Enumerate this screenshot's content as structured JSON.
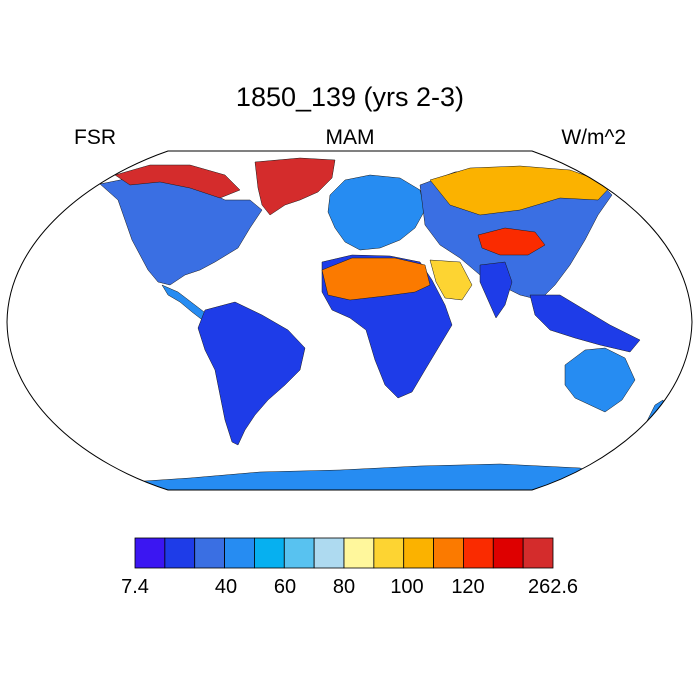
{
  "title": "1850_139 (yrs 2-3)",
  "left_label": "FSR",
  "center_label": "MAM",
  "right_label": "W/m^2",
  "colorbar": {
    "colors": [
      "#3b16f2",
      "#1e3ce8",
      "#3a6fe3",
      "#268cf2",
      "#06b0f0",
      "#58c2f0",
      "#aedaf0",
      "#fff79c",
      "#fdd432",
      "#fbb200",
      "#fb7a00",
      "#fa2b00",
      "#de0000",
      "#d42c2c"
    ],
    "labels": [
      {
        "text": "7.4",
        "boundary": 0
      },
      {
        "text": "40",
        "boundary": 2
      },
      {
        "text": "60",
        "boundary": 3
      },
      {
        "text": "80",
        "boundary": 4
      },
      {
        "text": "100",
        "boundary": 5
      },
      {
        "text": "120",
        "boundary": 6
      },
      {
        "text": "262.6",
        "boundary": 7
      }
    ]
  },
  "map": {
    "projection": "robinson",
    "ocean_color": "#ffffff",
    "regions": [
      {
        "name": "greenland",
        "color": "#d42c2c"
      },
      {
        "name": "canadian-arctic",
        "color": "#d42c2c"
      },
      {
        "name": "north-america",
        "color": "#3a6fe3"
      },
      {
        "name": "central-america",
        "color": "#268cf2"
      },
      {
        "name": "south-america",
        "color": "#1e3ce8"
      },
      {
        "name": "europe",
        "color": "#268cf2"
      },
      {
        "name": "africa",
        "color": "#1e3ce8"
      },
      {
        "name": "sahara",
        "color": "#fb7a00"
      },
      {
        "name": "arabia",
        "color": "#fdd432"
      },
      {
        "name": "asia",
        "color": "#3a6fe3"
      },
      {
        "name": "siberia",
        "color": "#fbb200"
      },
      {
        "name": "tibet",
        "color": "#fa2b00"
      },
      {
        "name": "india",
        "color": "#1e3ce8"
      },
      {
        "name": "southeast-asia",
        "color": "#1e3ce8"
      },
      {
        "name": "australia",
        "color": "#268cf2"
      },
      {
        "name": "antarctica",
        "color": "#268cf2"
      }
    ]
  }
}
